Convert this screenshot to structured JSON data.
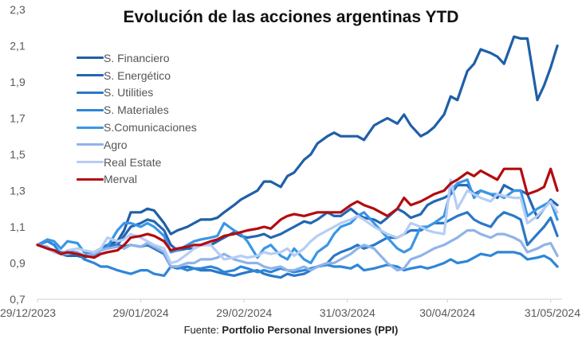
{
  "chart_data": {
    "type": "line",
    "title": "Evolución de las acciones argentinas YTD",
    "source_prefix": "Fuente: ",
    "source_name": "Portfolio Personal Inversiones (PPI)",
    "xlabel": "",
    "ylabel": "",
    "ylim": [
      0.7,
      2.3
    ],
    "yticks": [
      "0,7",
      "0,9",
      "1,1",
      "1,3",
      "1,5",
      "1,7",
      "1,9",
      "2,1",
      "2,3"
    ],
    "ytick_values": [
      0.7,
      0.9,
      1.1,
      1.3,
      1.5,
      1.7,
      1.9,
      2.1,
      2.3
    ],
    "xlim_days": [
      0,
      157
    ],
    "xticks": [
      "29/12/2023",
      "29/01/2024",
      "29/02/2024",
      "31/03/2024",
      "30/04/2024",
      "31/05/2024"
    ],
    "xtick_days": [
      0,
      31,
      62,
      93,
      123,
      154
    ],
    "x_unit": "days since 29/12/2023",
    "grid": false,
    "legend_position": "top-left",
    "x": [
      0,
      3,
      5,
      7,
      9,
      12,
      14,
      17,
      19,
      21,
      24,
      26,
      28,
      31,
      33,
      35,
      38,
      40,
      42,
      45,
      47,
      49,
      52,
      54,
      56,
      59,
      61,
      63,
      66,
      68,
      70,
      73,
      75,
      77,
      80,
      82,
      84,
      87,
      89,
      91,
      94,
      96,
      98,
      101,
      103,
      105,
      108,
      110,
      112,
      115,
      117,
      119,
      122,
      124,
      126,
      129,
      131,
      133,
      136,
      138,
      140,
      143,
      145,
      147,
      150,
      152,
      154,
      156
    ],
    "series": [
      {
        "name": "S. Financiero",
        "color": "#1f5fa8",
        "values": [
          1.0,
          0.98,
          0.97,
          0.96,
          0.95,
          0.95,
          0.94,
          0.96,
          0.98,
          1.0,
          1.02,
          1.08,
          1.18,
          1.18,
          1.2,
          1.19,
          1.12,
          1.06,
          1.08,
          1.1,
          1.12,
          1.14,
          1.14,
          1.15,
          1.18,
          1.22,
          1.25,
          1.27,
          1.3,
          1.35,
          1.35,
          1.32,
          1.38,
          1.4,
          1.47,
          1.5,
          1.56,
          1.6,
          1.62,
          1.6,
          1.6,
          1.6,
          1.58,
          1.66,
          1.68,
          1.7,
          1.67,
          1.72,
          1.66,
          1.6,
          1.62,
          1.65,
          1.72,
          1.82,
          1.8,
          1.96,
          2.0,
          2.08,
          2.06,
          2.04,
          2.0,
          2.15,
          2.14,
          2.14,
          1.8,
          1.88,
          1.98,
          2.1
        ]
      },
      {
        "name": "S. Energético",
        "color": "#2266b4",
        "values": [
          1.0,
          0.98,
          0.96,
          0.95,
          0.94,
          0.94,
          0.93,
          0.95,
          0.97,
          0.99,
          1.0,
          1.05,
          1.1,
          1.12,
          1.14,
          1.13,
          1.08,
          1.0,
          0.97,
          0.98,
          0.98,
          1.0,
          1.0,
          1.02,
          1.04,
          1.07,
          1.05,
          1.04,
          1.05,
          1.06,
          1.04,
          1.06,
          1.08,
          1.1,
          1.13,
          1.12,
          1.14,
          1.18,
          1.16,
          1.16,
          1.2,
          1.17,
          1.15,
          1.14,
          1.12,
          1.15,
          1.2,
          1.18,
          1.15,
          1.17,
          1.22,
          1.24,
          1.26,
          1.28,
          1.33,
          1.33,
          1.28,
          1.3,
          1.28,
          1.26,
          1.33,
          1.3,
          1.3,
          1.28,
          1.15,
          1.2,
          1.25,
          1.22
        ]
      },
      {
        "name": "S. Utilities",
        "color": "#2a78c8",
        "values": [
          1.0,
          0.98,
          0.97,
          0.96,
          0.96,
          0.95,
          0.94,
          0.96,
          0.98,
          1.0,
          1.0,
          0.99,
          1.0,
          0.99,
          1.0,
          0.98,
          0.95,
          0.88,
          0.87,
          0.88,
          0.87,
          0.86,
          0.86,
          0.85,
          0.84,
          0.83,
          0.84,
          0.85,
          0.86,
          0.84,
          0.83,
          0.82,
          0.84,
          0.83,
          0.84,
          0.86,
          0.88,
          0.9,
          0.94,
          0.96,
          0.98,
          1.0,
          0.98,
          1.0,
          1.02,
          1.04,
          1.04,
          1.06,
          1.08,
          1.08,
          1.1,
          1.12,
          1.12,
          1.14,
          1.16,
          1.18,
          1.14,
          1.12,
          1.1,
          1.15,
          1.18,
          1.16,
          1.14,
          1.0,
          1.06,
          1.1,
          1.15,
          1.05
        ]
      },
      {
        "name": "S. Materiales",
        "color": "#2e86d8",
        "values": [
          1.0,
          1.02,
          1.0,
          0.95,
          0.96,
          0.96,
          0.92,
          0.9,
          0.88,
          0.88,
          0.86,
          0.85,
          0.84,
          0.86,
          0.86,
          0.84,
          0.83,
          0.88,
          0.88,
          0.86,
          0.87,
          0.87,
          0.88,
          0.87,
          0.85,
          0.86,
          0.88,
          0.87,
          0.85,
          0.86,
          0.85,
          0.87,
          0.86,
          0.85,
          0.86,
          0.87,
          0.88,
          0.89,
          0.88,
          0.88,
          0.87,
          0.89,
          0.86,
          0.87,
          0.88,
          0.89,
          0.88,
          0.86,
          0.87,
          0.88,
          0.87,
          0.88,
          0.9,
          0.92,
          0.9,
          0.91,
          0.93,
          0.95,
          0.94,
          0.96,
          0.96,
          0.96,
          0.95,
          0.92,
          0.93,
          0.94,
          0.92,
          0.88
        ]
      },
      {
        "name": "S.Comunicaciones",
        "color": "#3a96e6",
        "values": [
          1.0,
          1.03,
          1.02,
          0.98,
          1.02,
          1.01,
          0.96,
          0.94,
          0.97,
          0.99,
          1.08,
          1.12,
          1.12,
          1.1,
          1.12,
          1.1,
          1.05,
          0.96,
          0.97,
          1.0,
          1.02,
          1.03,
          1.04,
          1.05,
          1.12,
          1.08,
          1.06,
          1.02,
          0.93,
          0.98,
          1.0,
          0.94,
          0.92,
          0.98,
          0.92,
          0.9,
          0.96,
          1.0,
          1.06,
          1.1,
          1.12,
          1.16,
          1.18,
          1.12,
          1.08,
          1.04,
          0.98,
          0.96,
          0.98,
          1.1,
          1.1,
          1.12,
          1.16,
          1.3,
          1.34,
          1.36,
          1.26,
          1.3,
          1.28,
          1.28,
          1.26,
          1.3,
          1.3,
          1.16,
          1.2,
          1.22,
          1.24,
          1.14
        ]
      },
      {
        "name": "Agro",
        "color": "#8fb3ea",
        "values": [
          1.0,
          0.99,
          0.96,
          0.95,
          0.95,
          0.96,
          0.94,
          0.95,
          0.97,
          0.98,
          0.99,
          0.98,
          1.0,
          0.99,
          1.01,
          0.99,
          0.96,
          0.88,
          0.88,
          0.9,
          0.9,
          0.92,
          0.92,
          0.93,
          0.95,
          0.92,
          0.91,
          0.9,
          0.9,
          0.88,
          0.87,
          0.88,
          0.86,
          0.86,
          0.88,
          0.86,
          0.88,
          0.9,
          0.9,
          0.92,
          0.95,
          0.98,
          1.0,
          0.98,
          0.94,
          0.9,
          0.86,
          0.87,
          0.92,
          0.94,
          0.96,
          0.98,
          1.0,
          1.02,
          1.04,
          1.08,
          1.08,
          1.06,
          1.04,
          1.06,
          1.06,
          1.04,
          1.02,
          0.96,
          0.98,
          1.0,
          1.01,
          0.94
        ]
      },
      {
        "name": "Real Estate",
        "color": "#b6cdf4",
        "values": [
          1.0,
          0.98,
          0.96,
          0.95,
          0.97,
          0.98,
          0.97,
          0.96,
          0.98,
          1.04,
          1.02,
          1.03,
          1.06,
          1.04,
          1.02,
          1.0,
          0.98,
          0.9,
          0.91,
          0.95,
          0.98,
          1.0,
          1.0,
          0.96,
          0.92,
          0.93,
          0.94,
          0.93,
          0.94,
          0.96,
          0.95,
          0.96,
          0.98,
          0.94,
          0.98,
          1.02,
          1.05,
          1.08,
          1.1,
          1.12,
          1.14,
          1.16,
          1.14,
          1.1,
          1.08,
          1.06,
          1.04,
          1.06,
          1.12,
          1.1,
          1.08,
          1.07,
          1.06,
          1.36,
          1.2,
          1.3,
          1.28,
          1.26,
          1.24,
          1.28,
          1.27,
          1.26,
          1.26,
          1.12,
          1.16,
          1.2,
          1.24,
          1.18
        ]
      },
      {
        "name": "Merval",
        "color": "#b20c10",
        "values": [
          1.0,
          0.98,
          0.97,
          0.95,
          0.96,
          0.95,
          0.94,
          0.93,
          0.95,
          0.96,
          0.97,
          1.0,
          1.04,
          1.05,
          1.06,
          1.05,
          1.02,
          0.97,
          0.98,
          0.99,
          1.0,
          1.0,
          1.02,
          1.03,
          1.05,
          1.06,
          1.07,
          1.08,
          1.09,
          1.1,
          1.09,
          1.14,
          1.16,
          1.17,
          1.16,
          1.17,
          1.18,
          1.18,
          1.18,
          1.18,
          1.22,
          1.24,
          1.22,
          1.2,
          1.18,
          1.16,
          1.2,
          1.26,
          1.22,
          1.24,
          1.26,
          1.28,
          1.3,
          1.34,
          1.36,
          1.4,
          1.38,
          1.41,
          1.38,
          1.36,
          1.42,
          1.42,
          1.42,
          1.28,
          1.3,
          1.32,
          1.42,
          1.3
        ]
      }
    ]
  }
}
